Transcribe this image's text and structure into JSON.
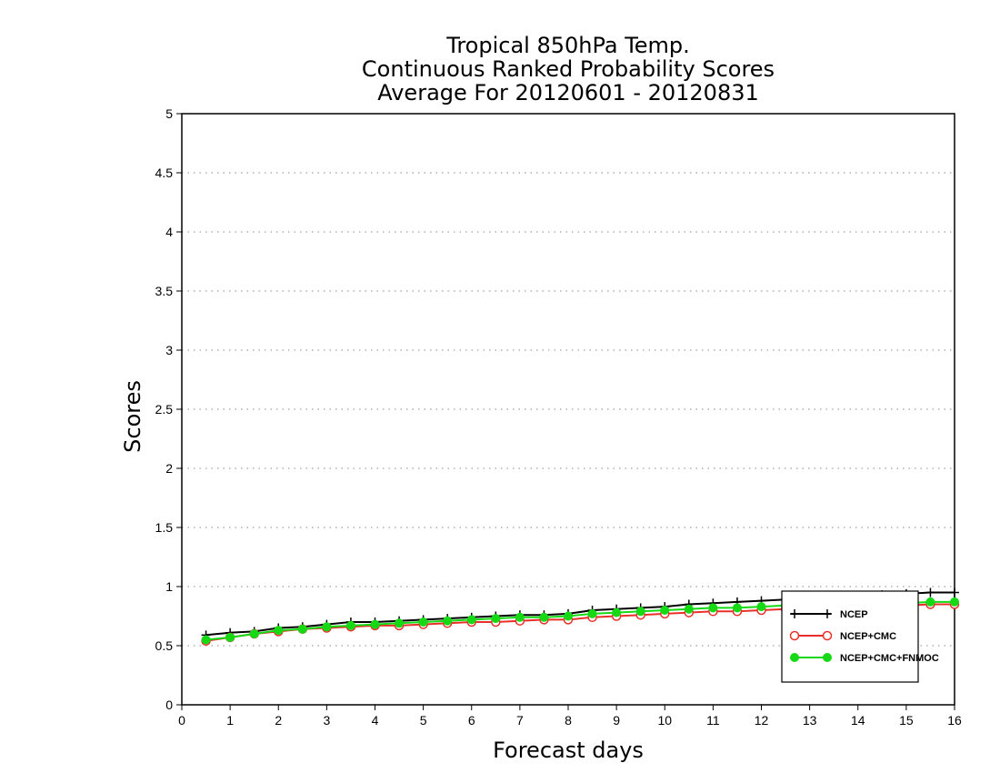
{
  "chart_data": {
    "type": "line",
    "title": [
      "Tropical 850hPa Temp.",
      "Continuous Ranked Probability Scores",
      "Average For 20120601 - 20120831"
    ],
    "xlabel": "Forecast days",
    "ylabel": "Scores",
    "xlim": [
      0,
      16
    ],
    "ylim": [
      0,
      5
    ],
    "x_ticks": [
      "0",
      "1",
      "2",
      "3",
      "4",
      "5",
      "6",
      "7",
      "8",
      "9",
      "10",
      "11",
      "12",
      "13",
      "14",
      "15",
      "16"
    ],
    "y_ticks": [
      "0",
      "0.5",
      "1",
      "1.5",
      "2",
      "2.5",
      "3",
      "3.5",
      "4",
      "4.5",
      "5"
    ],
    "grid": "horizontal dotted",
    "legend_position": "bottom-right",
    "x": [
      0.5,
      1,
      1.5,
      2,
      2.5,
      3,
      3.5,
      4,
      4.5,
      5,
      5.5,
      6,
      6.5,
      7,
      7.5,
      8,
      8.5,
      9,
      9.5,
      10,
      10.5,
      11,
      11.5,
      12,
      12.5,
      13,
      13.5,
      14,
      14.5,
      15,
      15.5,
      16
    ],
    "series": [
      {
        "name": "NCEP",
        "color": "#000000",
        "marker": "plus",
        "values": [
          0.59,
          0.61,
          0.62,
          0.65,
          0.66,
          0.68,
          0.7,
          0.7,
          0.71,
          0.72,
          0.73,
          0.74,
          0.75,
          0.76,
          0.76,
          0.77,
          0.8,
          0.81,
          0.82,
          0.83,
          0.85,
          0.86,
          0.87,
          0.88,
          0.89,
          0.9,
          0.91,
          0.92,
          0.93,
          0.94,
          0.95,
          0.95
        ]
      },
      {
        "name": "NCEP+CMC",
        "color": "#e8302a",
        "marker": "open-circle",
        "values": [
          0.54,
          0.57,
          0.6,
          0.62,
          0.64,
          0.65,
          0.66,
          0.67,
          0.67,
          0.68,
          0.69,
          0.7,
          0.7,
          0.71,
          0.72,
          0.72,
          0.74,
          0.75,
          0.76,
          0.77,
          0.78,
          0.79,
          0.79,
          0.8,
          0.81,
          0.82,
          0.82,
          0.83,
          0.84,
          0.84,
          0.85,
          0.85
        ]
      },
      {
        "name": "NCEP+CMC+FNMOC",
        "color": "#16d916",
        "marker": "filled-circle",
        "values": [
          0.55,
          0.57,
          0.6,
          0.63,
          0.64,
          0.66,
          0.67,
          0.68,
          0.69,
          0.7,
          0.71,
          0.72,
          0.73,
          0.74,
          0.74,
          0.75,
          0.77,
          0.78,
          0.79,
          0.8,
          0.81,
          0.82,
          0.82,
          0.83,
          0.84,
          0.84,
          0.85,
          0.85,
          0.86,
          0.86,
          0.87,
          0.87
        ]
      }
    ]
  }
}
